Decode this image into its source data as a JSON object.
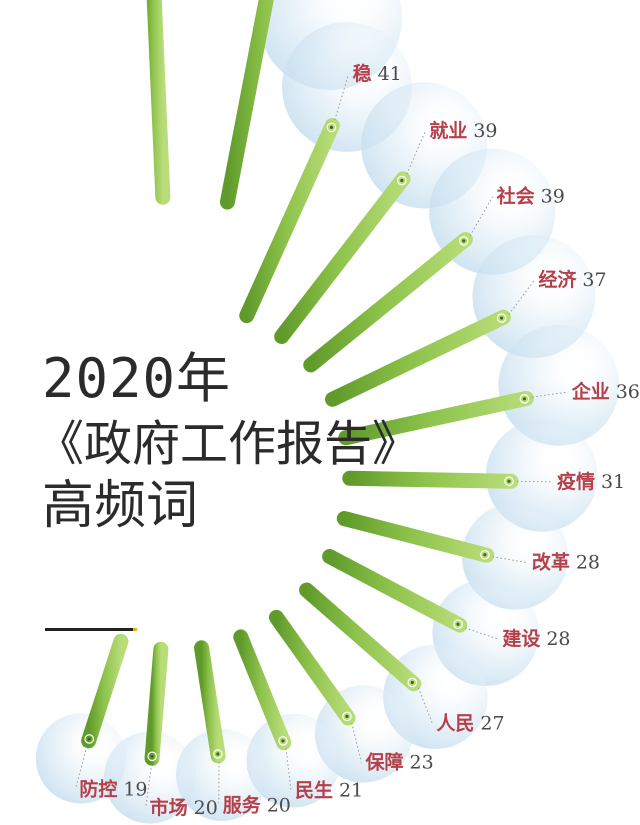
{
  "title": {
    "year": "2020年",
    "report": "《政府工作报告》",
    "subtitle": "高频词"
  },
  "colors": {
    "bar_light": "#a8d36a",
    "bar_dark": "#5f9a2a",
    "bubble": "#d8e9f3",
    "word": "#b5404a",
    "count": "#4a4a4a"
  },
  "chart_data": {
    "type": "bar",
    "layout": "radial-half-circle",
    "title": "2020年《政府工作报告》高频词",
    "categories": [
      "稳",
      "就业",
      "社会",
      "经济",
      "企业",
      "疫情",
      "改革",
      "建设",
      "人民",
      "保障",
      "民生",
      "服务",
      "市场",
      "防控"
    ],
    "values": [
      41,
      39,
      39,
      37,
      36,
      31,
      28,
      28,
      27,
      23,
      21,
      20,
      20,
      19
    ],
    "unlabeled_top_bars": 2
  }
}
